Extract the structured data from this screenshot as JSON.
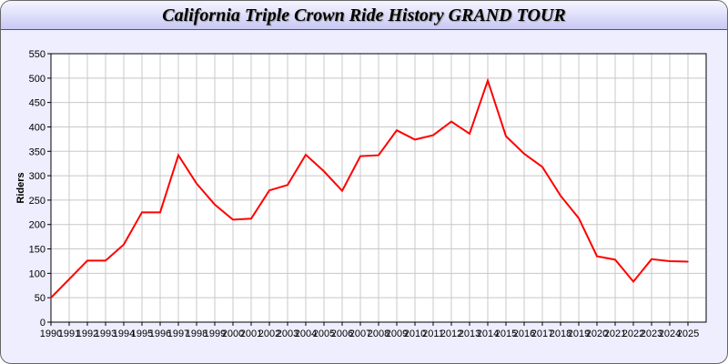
{
  "chart_data": {
    "type": "line",
    "title": "California Triple Crown Ride History GRAND TOUR",
    "xlabel": "",
    "ylabel": "Riders",
    "ylim": [
      0,
      550
    ],
    "yticks": [
      0,
      50,
      100,
      150,
      200,
      250,
      300,
      350,
      400,
      450,
      500,
      550
    ],
    "grid": true,
    "series_color": "#ff0000",
    "x": [
      1990,
      1991,
      1992,
      1993,
      1994,
      1995,
      1996,
      1997,
      1998,
      1999,
      2000,
      2001,
      2002,
      2003,
      2004,
      2005,
      2006,
      2007,
      2008,
      2009,
      2010,
      2011,
      2012,
      2013,
      2014,
      2015,
      2016,
      2017,
      2018,
      2019,
      2020,
      2021,
      2022,
      2023,
      2024,
      2025
    ],
    "values": [
      50,
      88,
      126,
      126,
      159,
      225,
      225,
      342,
      284,
      241,
      210,
      212,
      270,
      281,
      343,
      309,
      269,
      340,
      342,
      393,
      374,
      383,
      411,
      386,
      495,
      381,
      345,
      318,
      259,
      213,
      135,
      128,
      83,
      129,
      125,
      124
    ]
  }
}
